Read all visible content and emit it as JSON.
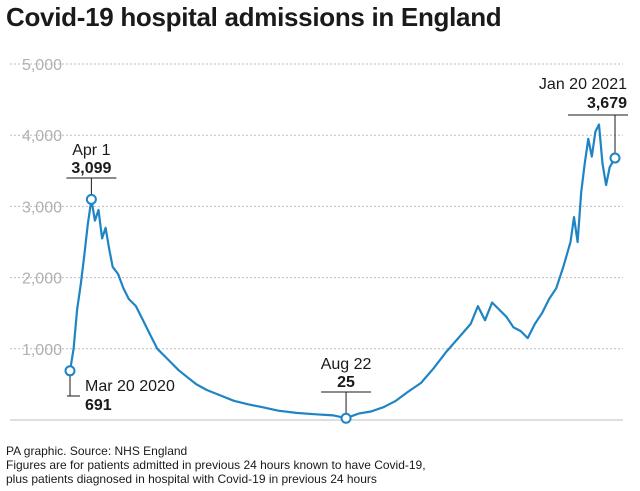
{
  "title": "Covid-19 hospital admissions in England",
  "footer": {
    "source": "PA graphic. Source: NHS England",
    "note1": "Figures are for patients admitted in previous 24 hours known to have Covid-19,",
    "note2": "plus patients diagnosed in hospital with Covid-19 in previous 24 hours"
  },
  "colors": {
    "line": "#1f84c4",
    "grid": "#bdbdbd",
    "axis_text": "#b0b0b0",
    "text": "#1a1a1a"
  },
  "chart_data": {
    "type": "line",
    "title": "Covid-19 hospital admissions in England",
    "xlabel": "",
    "ylabel": "",
    "ylim": [
      0,
      5000
    ],
    "yticks": [
      1000,
      2000,
      3000,
      4000,
      5000
    ],
    "ytick_labels": [
      "1,000",
      "2,000",
      "3,000",
      "4,000",
      "5,000"
    ],
    "grid": true,
    "x_range": [
      "2020-03-20",
      "2021-01-20"
    ],
    "series": [
      {
        "points": [
          [
            "2020-03-20",
            691
          ],
          [
            "2020-03-22",
            1000
          ],
          [
            "2020-03-24",
            1550
          ],
          [
            "2020-03-26",
            1900
          ],
          [
            "2020-03-28",
            2300
          ],
          [
            "2020-03-30",
            2750
          ],
          [
            "2020-04-01",
            3099
          ],
          [
            "2020-04-03",
            2800
          ],
          [
            "2020-04-05",
            2950
          ],
          [
            "2020-04-07",
            2550
          ],
          [
            "2020-04-09",
            2700
          ],
          [
            "2020-04-11",
            2400
          ],
          [
            "2020-04-13",
            2150
          ],
          [
            "2020-04-16",
            2050
          ],
          [
            "2020-04-19",
            1850
          ],
          [
            "2020-04-22",
            1700
          ],
          [
            "2020-04-26",
            1600
          ],
          [
            "2020-04-30",
            1400
          ],
          [
            "2020-05-04",
            1200
          ],
          [
            "2020-05-08",
            1000
          ],
          [
            "2020-05-12",
            900
          ],
          [
            "2020-05-16",
            800
          ],
          [
            "2020-05-20",
            700
          ],
          [
            "2020-05-25",
            600
          ],
          [
            "2020-05-30",
            500
          ],
          [
            "2020-06-05",
            420
          ],
          [
            "2020-06-12",
            350
          ],
          [
            "2020-06-20",
            270
          ],
          [
            "2020-06-28",
            220
          ],
          [
            "2020-07-06",
            180
          ],
          [
            "2020-07-15",
            130
          ],
          [
            "2020-07-25",
            100
          ],
          [
            "2020-08-05",
            80
          ],
          [
            "2020-08-15",
            65
          ],
          [
            "2020-08-22",
            25
          ],
          [
            "2020-08-29",
            90
          ],
          [
            "2020-09-05",
            120
          ],
          [
            "2020-09-12",
            180
          ],
          [
            "2020-09-19",
            270
          ],
          [
            "2020-09-26",
            400
          ],
          [
            "2020-10-03",
            520
          ],
          [
            "2020-10-10",
            720
          ],
          [
            "2020-10-17",
            950
          ],
          [
            "2020-10-24",
            1150
          ],
          [
            "2020-10-31",
            1350
          ],
          [
            "2020-11-04",
            1600
          ],
          [
            "2020-11-08",
            1400
          ],
          [
            "2020-11-12",
            1650
          ],
          [
            "2020-11-16",
            1550
          ],
          [
            "2020-11-20",
            1450
          ],
          [
            "2020-11-24",
            1300
          ],
          [
            "2020-11-28",
            1250
          ],
          [
            "2020-12-02",
            1150
          ],
          [
            "2020-12-06",
            1350
          ],
          [
            "2020-12-10",
            1500
          ],
          [
            "2020-12-14",
            1700
          ],
          [
            "2020-12-18",
            1850
          ],
          [
            "2020-12-22",
            2150
          ],
          [
            "2020-12-26",
            2500
          ],
          [
            "2020-12-28",
            2850
          ],
          [
            "2020-12-30",
            2500
          ],
          [
            "2021-01-01",
            3200
          ],
          [
            "2021-01-03",
            3600
          ],
          [
            "2021-01-05",
            3950
          ],
          [
            "2021-01-07",
            3700
          ],
          [
            "2021-01-09",
            4050
          ],
          [
            "2021-01-11",
            4150
          ],
          [
            "2021-01-13",
            3600
          ],
          [
            "2021-01-15",
            3300
          ],
          [
            "2021-01-17",
            3550
          ],
          [
            "2021-01-20",
            3679
          ]
        ]
      }
    ],
    "annotations": [
      {
        "date_label": "Mar 20 2020",
        "value_label": "691",
        "x": "2020-03-20",
        "y": 691
      },
      {
        "date_label": "Apr 1",
        "value_label": "3,099",
        "x": "2020-04-01",
        "y": 3099
      },
      {
        "date_label": "Aug 22",
        "value_label": "25",
        "x": "2020-08-22",
        "y": 25
      },
      {
        "date_label": "Jan 20 2021",
        "value_label": "3,679",
        "x": "2021-01-20",
        "y": 3679
      }
    ]
  }
}
